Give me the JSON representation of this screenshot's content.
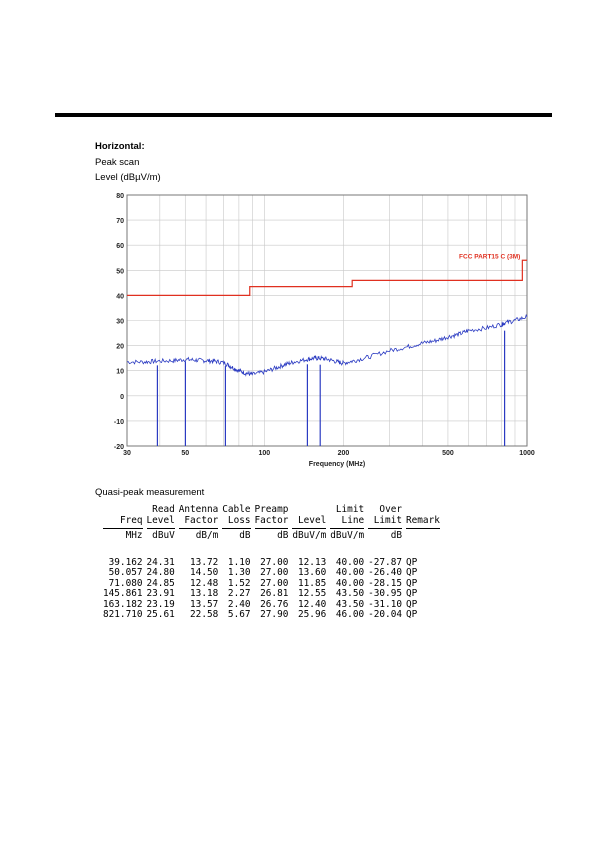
{
  "heading": "Horizontal:",
  "scan_label": "Peak scan",
  "level_label": "Level (dBµV/m)",
  "qp_label": "Quasi-peak measurement",
  "colors": {
    "limit": "#e03020",
    "trace": "#2b3bc2",
    "grid": "#c8c8c8"
  },
  "chart_data": {
    "type": "line",
    "x_scale": "log",
    "xlim": [
      30,
      1000
    ],
    "ylim": [
      -20,
      80
    ],
    "xlabel": "Frequency (MHz)",
    "ylabel": "Level (dBµV/m)",
    "x_ticks": [
      30,
      50,
      100,
      200,
      500,
      1000
    ],
    "x_tick_labels": [
      "30",
      "50",
      "100",
      "200",
      "500",
      "1000"
    ],
    "y_ticks": [
      -20,
      -10,
      0,
      10,
      20,
      30,
      40,
      50,
      60,
      70,
      80
    ],
    "y_tick_labels": [
      "-20",
      "-10",
      "0",
      "10",
      "20",
      "30",
      "40",
      "50",
      "60",
      "70",
      "80"
    ],
    "grid": true,
    "limit_label": "FCC PART15 C (3M)",
    "limit": {
      "x": [
        30,
        88,
        88,
        216,
        216,
        960,
        960,
        1000
      ],
      "y": [
        40,
        40,
        43.5,
        43.5,
        46,
        46,
        54,
        54
      ]
    },
    "peak_trace": {
      "x": [
        30,
        35,
        39,
        45,
        50,
        55,
        60,
        65,
        71,
        75,
        80,
        85,
        90,
        100,
        110,
        120,
        130,
        145,
        155,
        163,
        175,
        190,
        200,
        220,
        250,
        300,
        350,
        400,
        450,
        500,
        550,
        600,
        700,
        800,
        822,
        900,
        1000
      ],
      "y": [
        13.5,
        13.5,
        13.8,
        14,
        14.5,
        14.2,
        14,
        13.8,
        13,
        11.5,
        10,
        9,
        8.5,
        9.5,
        11,
        12.5,
        13.5,
        14.5,
        15,
        15,
        14.5,
        13.5,
        13,
        14,
        15.5,
        18,
        19.5,
        21,
        22,
        23.5,
        24.5,
        26,
        27,
        28.5,
        29,
        30,
        31.5
      ]
    },
    "qp_markers": {
      "x": [
        39.162,
        50.057,
        71.08,
        145.861,
        163.182,
        821.71
      ],
      "y": [
        12.13,
        13.6,
        11.85,
        12.55,
        12.4,
        25.96
      ]
    }
  },
  "table": {
    "header1": [
      "",
      "Read",
      "Antenna",
      "Cable",
      "Preamp",
      "",
      "Limit",
      "Over",
      ""
    ],
    "header2": [
      "Freq",
      "Level",
      "Factor",
      "Loss",
      "Factor",
      "Level",
      "Line",
      "Limit",
      "Remark"
    ],
    "units": [
      "MHz",
      "dBuV",
      "dB/m",
      "dB",
      "dB",
      "dBuV/m",
      "dBuV/m",
      "dB",
      ""
    ],
    "rows": [
      [
        "39.162",
        "24.31",
        "13.72",
        "1.10",
        "27.00",
        "12.13",
        "40.00",
        "-27.87",
        "QP"
      ],
      [
        "50.057",
        "24.80",
        "14.50",
        "1.30",
        "27.00",
        "13.60",
        "40.00",
        "-26.40",
        "QP"
      ],
      [
        "71.080",
        "24.85",
        "12.48",
        "1.52",
        "27.00",
        "11.85",
        "40.00",
        "-28.15",
        "QP"
      ],
      [
        "145.861",
        "23.91",
        "13.18",
        "2.27",
        "26.81",
        "12.55",
        "43.50",
        "-30.95",
        "QP"
      ],
      [
        "163.182",
        "23.19",
        "13.57",
        "2.40",
        "26.76",
        "12.40",
        "43.50",
        "-31.10",
        "QP"
      ],
      [
        "821.710",
        "25.61",
        "22.58",
        "5.67",
        "27.90",
        "25.96",
        "46.00",
        "-20.04",
        "QP"
      ]
    ]
  }
}
